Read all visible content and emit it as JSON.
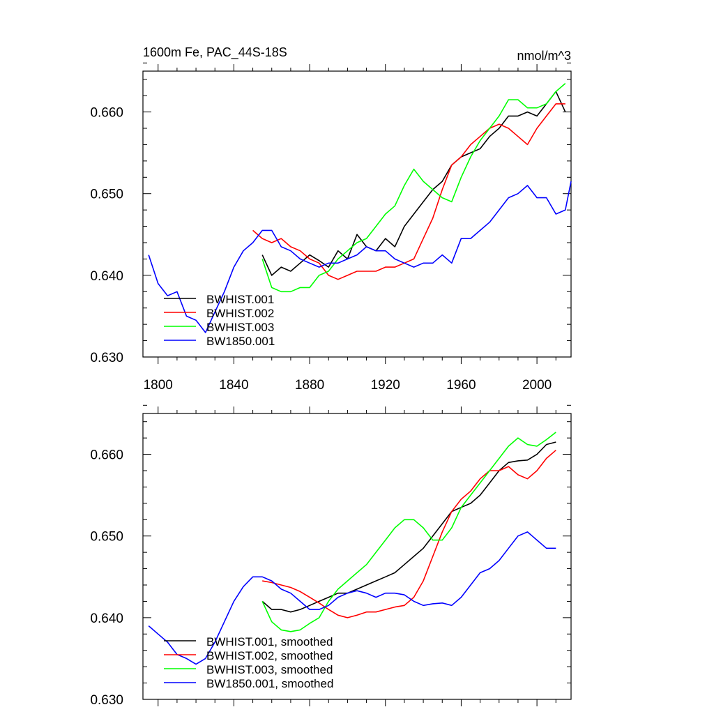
{
  "chart_data": [
    {
      "type": "line",
      "title": "1600m Fe, PAC_44S-18S",
      "units": "nmol/m^3",
      "xlim": [
        1792,
        2018
      ],
      "ylim": [
        0.63,
        0.665
      ],
      "xticks": [
        1800,
        1840,
        1880,
        1920,
        1960,
        2000
      ],
      "xtick_labels": [
        "1800",
        "1840",
        "1880",
        "1920",
        "1960",
        "2000"
      ],
      "yticks": [
        0.63,
        0.64,
        0.65,
        0.66
      ],
      "ytick_labels": [
        "0.630",
        "0.640",
        "0.650",
        "0.660"
      ],
      "legend_position": "bottom-left",
      "series": [
        {
          "name": "BWHIST.001",
          "color": "#000000",
          "x": [
            1855,
            1860,
            1865,
            1870,
            1875,
            1880,
            1885,
            1890,
            1895,
            1900,
            1905,
            1910,
            1915,
            1920,
            1925,
            1930,
            1935,
            1940,
            1945,
            1950,
            1955,
            1960,
            1965,
            1970,
            1975,
            1980,
            1985,
            1990,
            1995,
            2000,
            2005,
            2010,
            2015
          ],
          "y": [
            0.6425,
            0.64,
            0.641,
            0.6405,
            0.6415,
            0.6425,
            0.6418,
            0.641,
            0.643,
            0.642,
            0.645,
            0.6435,
            0.643,
            0.6445,
            0.6435,
            0.646,
            0.6475,
            0.649,
            0.6505,
            0.6515,
            0.6535,
            0.6545,
            0.655,
            0.6555,
            0.657,
            0.658,
            0.6595,
            0.6595,
            0.66,
            0.6595,
            0.661,
            0.6625,
            0.66
          ]
        },
        {
          "name": "BWHIST.002",
          "color": "#ff0000",
          "x": [
            1850,
            1855,
            1860,
            1865,
            1870,
            1875,
            1880,
            1885,
            1890,
            1895,
            1900,
            1905,
            1910,
            1915,
            1920,
            1925,
            1930,
            1935,
            1940,
            1945,
            1950,
            1955,
            1960,
            1965,
            1970,
            1975,
            1980,
            1985,
            1990,
            1995,
            2000,
            2005,
            2010,
            2015
          ],
          "y": [
            0.6455,
            0.6445,
            0.644,
            0.6445,
            0.6435,
            0.643,
            0.642,
            0.6415,
            0.64,
            0.6395,
            0.64,
            0.6405,
            0.6405,
            0.6405,
            0.641,
            0.641,
            0.6415,
            0.642,
            0.6445,
            0.647,
            0.6505,
            0.6535,
            0.6545,
            0.656,
            0.657,
            0.658,
            0.6585,
            0.658,
            0.657,
            0.656,
            0.658,
            0.6595,
            0.661,
            0.661
          ]
        },
        {
          "name": "BWHIST.003",
          "color": "#00ff00",
          "x": [
            1855,
            1860,
            1865,
            1870,
            1875,
            1880,
            1885,
            1890,
            1895,
            1900,
            1905,
            1910,
            1915,
            1920,
            1925,
            1930,
            1935,
            1940,
            1945,
            1950,
            1955,
            1960,
            1965,
            1970,
            1975,
            1980,
            1985,
            1990,
            1995,
            2000,
            2005,
            2010,
            2015
          ],
          "y": [
            0.642,
            0.6385,
            0.638,
            0.638,
            0.6385,
            0.6385,
            0.64,
            0.6405,
            0.642,
            0.643,
            0.644,
            0.6445,
            0.646,
            0.6475,
            0.6485,
            0.651,
            0.653,
            0.6515,
            0.6505,
            0.6495,
            0.649,
            0.652,
            0.6545,
            0.6565,
            0.658,
            0.6595,
            0.6615,
            0.6615,
            0.6605,
            0.6605,
            0.661,
            0.6625,
            0.6635
          ]
        },
        {
          "name": "BW1850.001",
          "color": "#0000ff",
          "x": [
            1795,
            1800,
            1805,
            1810,
            1815,
            1820,
            1825,
            1830,
            1835,
            1840,
            1845,
            1850,
            1855,
            1860,
            1865,
            1870,
            1875,
            1880,
            1885,
            1890,
            1895,
            1900,
            1905,
            1910,
            1915,
            1920,
            1925,
            1930,
            1935,
            1940,
            1945,
            1950,
            1955,
            1960,
            1965,
            1970,
            1975,
            1980,
            1985,
            1990,
            1995,
            2000,
            2005,
            2010,
            2015,
            2018
          ],
          "y": [
            0.6425,
            0.639,
            0.6375,
            0.638,
            0.635,
            0.6345,
            0.633,
            0.6355,
            0.638,
            0.641,
            0.643,
            0.644,
            0.6455,
            0.6455,
            0.6435,
            0.643,
            0.642,
            0.6415,
            0.641,
            0.6415,
            0.6415,
            0.642,
            0.6425,
            0.6435,
            0.643,
            0.643,
            0.642,
            0.6415,
            0.641,
            0.6415,
            0.6415,
            0.6425,
            0.6415,
            0.6445,
            0.6445,
            0.6455,
            0.6465,
            0.648,
            0.6495,
            0.65,
            0.651,
            0.6495,
            0.6495,
            0.6475,
            0.648,
            0.6515
          ]
        }
      ]
    },
    {
      "type": "line",
      "title": "",
      "xlim": [
        1792,
        2018
      ],
      "ylim": [
        0.63,
        0.665
      ],
      "xticks": [
        1800,
        1840,
        1880,
        1920,
        1960,
        2000
      ],
      "yticks": [
        0.63,
        0.64,
        0.65,
        0.66
      ],
      "ytick_labels": [
        "0.630",
        "0.640",
        "0.650",
        "0.660"
      ],
      "legend_position": "bottom-left",
      "series": [
        {
          "name": "BWHIST.001, smoothed",
          "color": "#000000",
          "x": [
            1855,
            1860,
            1865,
            1870,
            1875,
            1880,
            1885,
            1890,
            1895,
            1900,
            1905,
            1910,
            1915,
            1920,
            1925,
            1930,
            1935,
            1940,
            1945,
            1950,
            1955,
            1960,
            1965,
            1970,
            1975,
            1980,
            1985,
            1990,
            1995,
            2000,
            2005,
            2010
          ],
          "y": [
            0.642,
            0.641,
            0.641,
            0.6407,
            0.641,
            0.6415,
            0.642,
            0.6425,
            0.643,
            0.643,
            0.6435,
            0.644,
            0.6445,
            0.645,
            0.6455,
            0.6465,
            0.6475,
            0.6485,
            0.65,
            0.6515,
            0.653,
            0.6535,
            0.654,
            0.655,
            0.6565,
            0.658,
            0.659,
            0.6592,
            0.6593,
            0.66,
            0.6612,
            0.6615
          ]
        },
        {
          "name": "BWHIST.002, smoothed",
          "color": "#ff0000",
          "x": [
            1855,
            1860,
            1865,
            1870,
            1875,
            1880,
            1885,
            1890,
            1895,
            1900,
            1905,
            1910,
            1915,
            1920,
            1925,
            1930,
            1935,
            1940,
            1945,
            1950,
            1955,
            1960,
            1965,
            1970,
            1975,
            1980,
            1985,
            1990,
            1995,
            2000,
            2005,
            2010
          ],
          "y": [
            0.6445,
            0.6443,
            0.644,
            0.6437,
            0.6432,
            0.6425,
            0.6418,
            0.641,
            0.6403,
            0.64,
            0.6403,
            0.6407,
            0.6407,
            0.641,
            0.6413,
            0.6415,
            0.6425,
            0.6445,
            0.6475,
            0.6505,
            0.653,
            0.6545,
            0.6555,
            0.657,
            0.658,
            0.658,
            0.6585,
            0.6575,
            0.657,
            0.658,
            0.6595,
            0.6605
          ]
        },
        {
          "name": "BWHIST.003, smoothed",
          "color": "#00ff00",
          "x": [
            1855,
            1860,
            1865,
            1870,
            1875,
            1880,
            1885,
            1890,
            1895,
            1900,
            1905,
            1910,
            1915,
            1920,
            1925,
            1930,
            1935,
            1940,
            1945,
            1950,
            1955,
            1960,
            1965,
            1970,
            1975,
            1980,
            1985,
            1990,
            1995,
            2000,
            2005,
            2010
          ],
          "y": [
            0.642,
            0.6395,
            0.6385,
            0.6383,
            0.6385,
            0.6393,
            0.64,
            0.642,
            0.6435,
            0.6445,
            0.6455,
            0.6465,
            0.648,
            0.6495,
            0.651,
            0.652,
            0.652,
            0.651,
            0.6495,
            0.6495,
            0.651,
            0.6535,
            0.655,
            0.6565,
            0.658,
            0.6595,
            0.661,
            0.662,
            0.6612,
            0.661,
            0.6618,
            0.6627
          ]
        },
        {
          "name": "BW1850.001, smoothed",
          "color": "#0000ff",
          "x": [
            1795,
            1800,
            1805,
            1810,
            1815,
            1820,
            1825,
            1830,
            1835,
            1840,
            1845,
            1850,
            1855,
            1860,
            1865,
            1870,
            1875,
            1880,
            1885,
            1890,
            1895,
            1900,
            1905,
            1910,
            1915,
            1920,
            1925,
            1930,
            1935,
            1940,
            1945,
            1950,
            1955,
            1960,
            1965,
            1970,
            1975,
            1980,
            1985,
            1990,
            1995,
            2000,
            2005,
            2010
          ],
          "y": [
            0.639,
            0.638,
            0.637,
            0.6355,
            0.635,
            0.6343,
            0.635,
            0.637,
            0.6395,
            0.642,
            0.6438,
            0.645,
            0.645,
            0.6445,
            0.6435,
            0.643,
            0.642,
            0.641,
            0.641,
            0.6415,
            0.6425,
            0.643,
            0.6433,
            0.643,
            0.6425,
            0.643,
            0.643,
            0.6428,
            0.642,
            0.6415,
            0.6417,
            0.6418,
            0.6415,
            0.6425,
            0.644,
            0.6455,
            0.646,
            0.647,
            0.6485,
            0.65,
            0.6505,
            0.6495,
            0.6485,
            0.6485
          ]
        }
      ]
    }
  ]
}
